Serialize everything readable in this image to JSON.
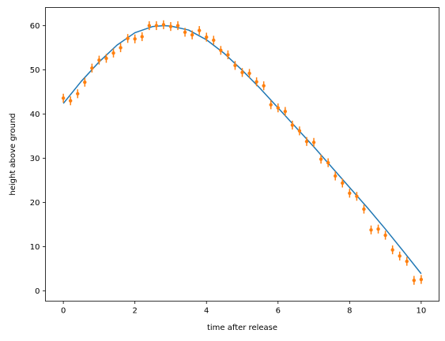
{
  "chart_data": {
    "type": "scatter",
    "title": "",
    "xlabel": "time after release",
    "ylabel": "height above ground",
    "xlim": [
      -0.5,
      10.5
    ],
    "ylim": [
      -2.3,
      64.1
    ],
    "xticks": [
      0,
      2,
      4,
      6,
      8,
      10
    ],
    "yticks": [
      0,
      10,
      20,
      30,
      40,
      50,
      60
    ],
    "grid": false,
    "legend": "none",
    "series": [
      {
        "kind": "line",
        "color": "#1f77b4",
        "x": [
          0,
          0.5,
          1,
          1.5,
          2,
          2.5,
          2.8,
          3,
          3.5,
          4,
          4.5,
          5,
          5.5,
          6,
          6.5,
          7,
          7.5,
          8,
          8.5,
          9,
          9.5,
          10
        ],
        "y": [
          42.4,
          47.4,
          51.8,
          55.6,
          58.4,
          59.8,
          60.0,
          59.9,
          59.0,
          56.8,
          53.7,
          49.9,
          45.8,
          41.4,
          37.0,
          32.6,
          28.0,
          23.4,
          18.8,
          14.0,
          9.0,
          3.9
        ]
      },
      {
        "kind": "errorbar",
        "color": "#ff7f0e",
        "yerr": 1.0,
        "x": [
          0,
          0.2,
          0.4,
          0.6,
          0.8,
          1.0,
          1.2,
          1.4,
          1.6,
          1.8,
          2.0,
          2.2,
          2.4,
          2.6,
          2.8,
          3.0,
          3.2,
          3.4,
          3.6,
          3.8,
          4.0,
          4.2,
          4.4,
          4.6,
          4.8,
          5.0,
          5.2,
          5.4,
          5.6,
          5.8,
          6.0,
          6.2,
          6.4,
          6.6,
          6.8,
          7.0,
          7.2,
          7.4,
          7.6,
          7.8,
          8.0,
          8.2,
          8.4,
          8.6,
          8.8,
          9.0,
          9.2,
          9.4,
          9.6,
          9.8,
          10.0
        ],
        "y": [
          43.6,
          43.0,
          44.6,
          47.2,
          50.4,
          52.2,
          52.6,
          53.8,
          55.0,
          57.1,
          57.0,
          57.5,
          60.0,
          60.0,
          60.2,
          59.8,
          60.0,
          58.5,
          57.9,
          58.9,
          57.4,
          56.7,
          54.4,
          53.4,
          51.0,
          49.4,
          49.2,
          47.3,
          46.4,
          42.1,
          41.4,
          40.6,
          37.5,
          36.2,
          33.8,
          33.6,
          29.8,
          29.0,
          26.0,
          24.4,
          22.1,
          21.4,
          18.5,
          13.8,
          14.0,
          12.6,
          9.3,
          7.9,
          6.7,
          2.4,
          2.6
        ]
      }
    ]
  }
}
